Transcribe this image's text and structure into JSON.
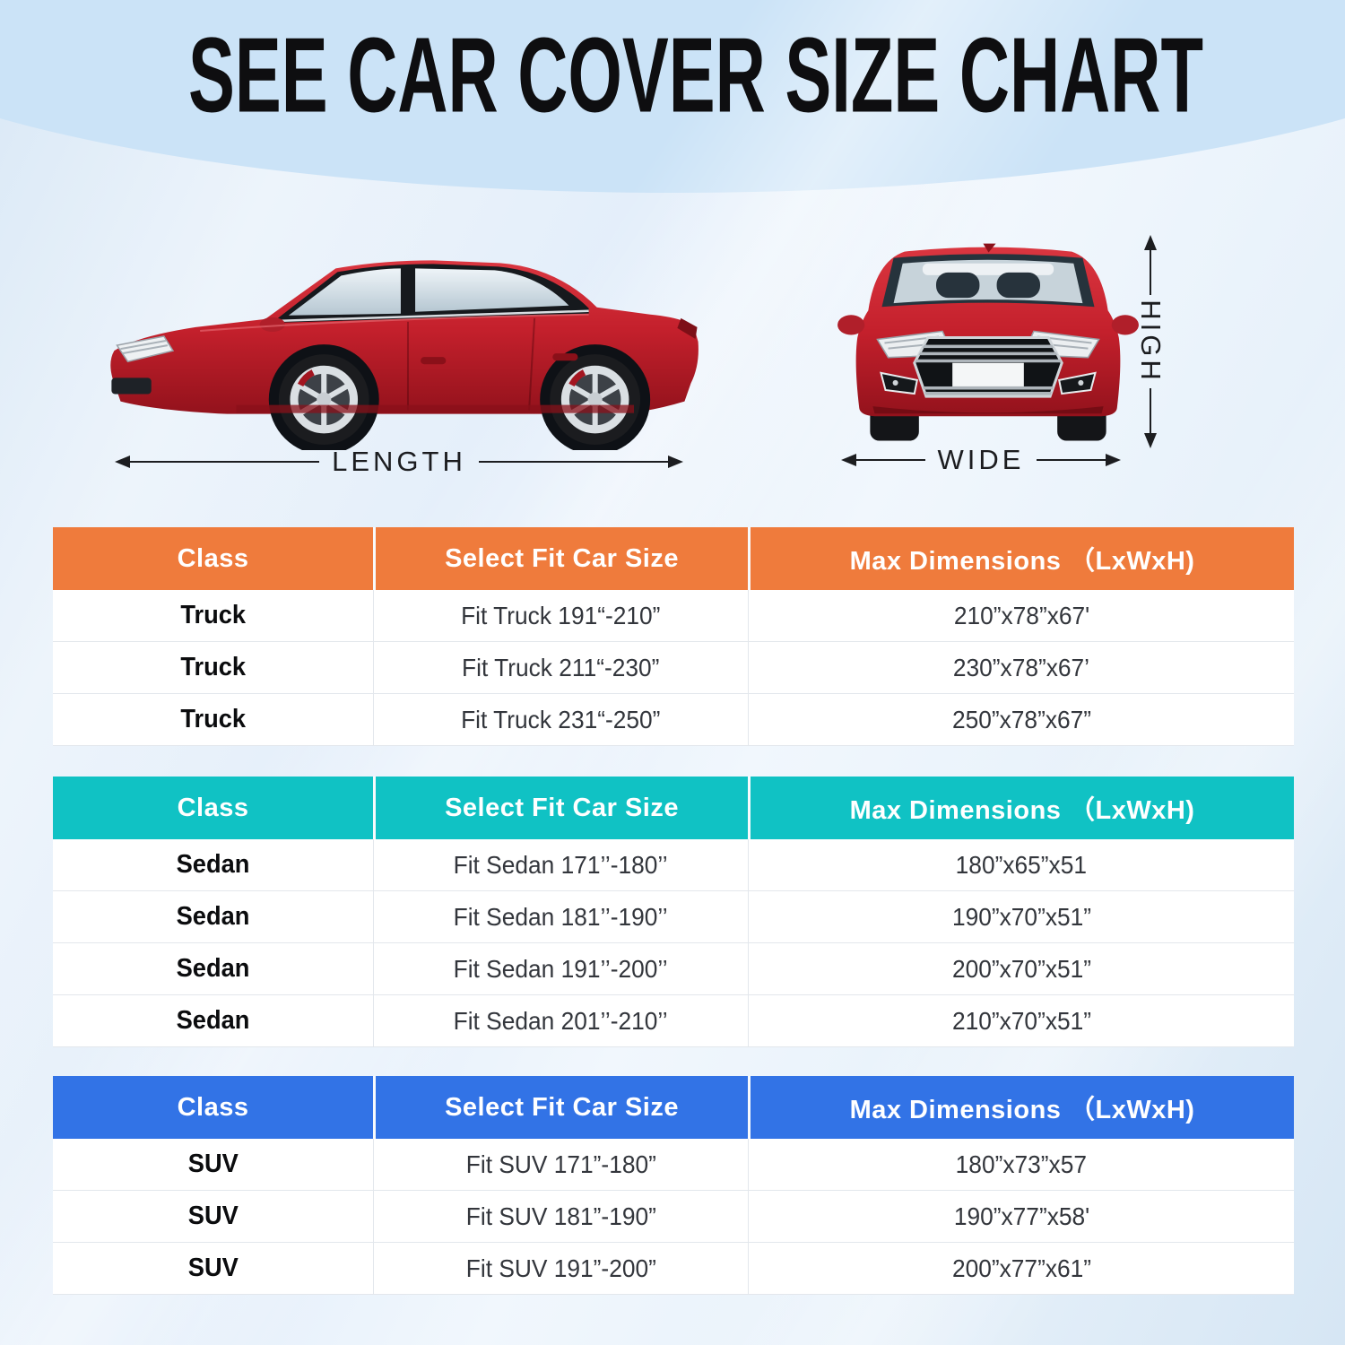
{
  "title": "SEE CAR COVER SIZE CHART",
  "diagram": {
    "side_car": "red-sedan-side-view-illustration",
    "front_car": "red-sedan-front-view-illustration",
    "length_label": "LENGTH",
    "wide_label": "WIDE",
    "high_label": "HIGH"
  },
  "colors": {
    "truck_accent": "#EF7B3C",
    "sedan_accent": "#10C2C4",
    "suv_accent": "#3273E6",
    "top_band": "#CBE3F7",
    "car_red": "#C4202C"
  },
  "tables": [
    {
      "class_name": "truck",
      "accent": "#EF7B3C",
      "headers": [
        "Class",
        "Select Fit Car Size",
        "Max Dimensions （LxWxH)"
      ],
      "rows": [
        {
          "class": "Truck",
          "fit": "Fit Truck 191“-210”",
          "max": "210”x78”x67'"
        },
        {
          "class": "Truck",
          "fit": "Fit Truck 211“-230”",
          "max": "230”x78”x67’"
        },
        {
          "class": "Truck",
          "fit": "Fit Truck 231“-250”",
          "max": "250”x78”x67”"
        }
      ]
    },
    {
      "class_name": "sedan",
      "accent": "#10C2C4",
      "headers": [
        "Class",
        "Select Fit Car Size",
        "Max Dimensions （LxWxH)"
      ],
      "rows": [
        {
          "class": "Sedan",
          "fit": "Fit Sedan 171’’-180’’",
          "max": "180”x65”x51"
        },
        {
          "class": "Sedan",
          "fit": "Fit Sedan 181’’-190’’",
          "max": "190”x70”x51”"
        },
        {
          "class": "Sedan",
          "fit": "Fit Sedan 191’’-200’’",
          "max": "200”x70”x51”"
        },
        {
          "class": "Sedan",
          "fit": "Fit Sedan 201’’-210’’",
          "max": "210”x70”x51”"
        }
      ]
    },
    {
      "class_name": "suv",
      "accent": "#3273E6",
      "headers": [
        "Class",
        "Select Fit Car Size",
        "Max Dimensions （LxWxH)"
      ],
      "rows": [
        {
          "class": "SUV",
          "fit": "Fit SUV 171”-180”",
          "max": "180”x73”x57"
        },
        {
          "class": "SUV",
          "fit": "Fit SUV 181”-190”",
          "max": "190”x77”x58'"
        },
        {
          "class": "SUV",
          "fit": "Fit SUV 191”-200”",
          "max": "200”x77”x61”"
        }
      ]
    }
  ]
}
